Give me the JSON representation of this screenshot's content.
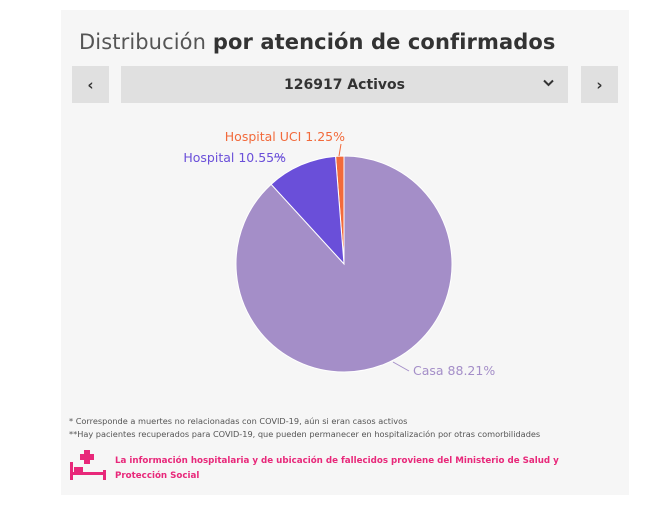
{
  "header": {
    "title_light": "Distribución",
    "title_bold": "por atención de confirmados"
  },
  "selector": {
    "prev_label": "‹",
    "next_label": "›",
    "selected": "126917 Activos"
  },
  "chart_data": {
    "type": "pie",
    "slices": [
      {
        "label": "Casa",
        "value": 88.21,
        "display": "Casa 88.21%",
        "color": "#a48ec8"
      },
      {
        "label": "Hospital",
        "value": 10.55,
        "display": "Hospital 10.55%",
        "color": "#6a4fd9"
      },
      {
        "label": "Hospital UCI",
        "value": 1.25,
        "display": "Hospital UCI 1.25%",
        "color": "#f26a3b"
      }
    ],
    "label_colors": {
      "Casa": "#a48ec8",
      "Hospital": "#6a4fd9",
      "Hospital UCI": "#f26a3b"
    }
  },
  "footnotes": {
    "note1": "* Corresponde a muertes no relacionadas con COVID-19, aún si eran casos activos",
    "note2": "**Hay pacientes recuperados para COVID-19, que pueden permanecer en hospitalización por otras comorbilidades",
    "source": "La información hospitalaria y de ubicación de fallecidos proviene del Ministerio de Salud y Protección Social"
  },
  "icons": {
    "bed": "hospital-bed-icon",
    "prev": "chevron-left-icon",
    "next": "chevron-right-icon",
    "dropdown": "chevron-down-icon"
  },
  "colors": {
    "accent": "#e8287a",
    "card_bg": "#f6f6f6",
    "control_bg": "#e0e0e0"
  }
}
